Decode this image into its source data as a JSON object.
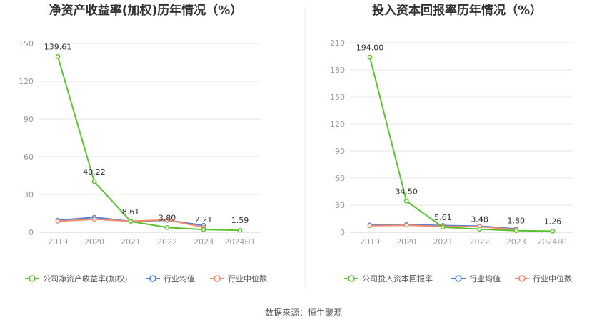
{
  "source_text": "数据来源：恒生聚源",
  "chart_data": [
    {
      "type": "line",
      "title": "净资产收益率(加权)历年情况（%）",
      "categories": [
        "2019",
        "2020",
        "2021",
        "2022",
        "2023",
        "2024H1"
      ],
      "ylim": [
        0,
        150
      ],
      "yticks": [
        0,
        30,
        60,
        90,
        120,
        150
      ],
      "grid": true,
      "legend_position": "bottom",
      "series": [
        {
          "name": "公司净资产收益率(加权)",
          "color": "#5cc22f",
          "values": [
            139.61,
            40.22,
            8.61,
            3.8,
            2.21,
            1.59
          ],
          "labels": [
            "139.61",
            "40.22",
            "8.61",
            "3.80",
            "2.21",
            "1.59"
          ]
        },
        {
          "name": "行业均值",
          "color": "#4f7fd7",
          "values": [
            9.5,
            11.8,
            8.7,
            9.5,
            5.5,
            null
          ]
        },
        {
          "name": "行业中位数",
          "color": "#f08a6c",
          "values": [
            8.8,
            10.3,
            8.8,
            9.8,
            4.0,
            null
          ]
        }
      ]
    },
    {
      "type": "line",
      "title": "投入资本回报率历年情况（%）",
      "categories": [
        "2019",
        "2020",
        "2021",
        "2022",
        "2023",
        "2024H1"
      ],
      "ylim": [
        0,
        210
      ],
      "yticks": [
        0,
        30,
        60,
        90,
        120,
        150,
        180,
        210
      ],
      "grid": true,
      "legend_position": "bottom",
      "series": [
        {
          "name": "公司投入资本回报率",
          "color": "#5cc22f",
          "values": [
            194.0,
            34.5,
            5.61,
            3.48,
            1.8,
            1.26
          ],
          "labels": [
            "194.00",
            "34.50",
            "5.61",
            "3.48",
            "1.80",
            "1.26"
          ]
        },
        {
          "name": "行业均值",
          "color": "#4f7fd7",
          "values": [
            8.0,
            8.5,
            7.5,
            6.8,
            3.8,
            null
          ]
        },
        {
          "name": "行业中位数",
          "color": "#f08a6c",
          "values": [
            7.2,
            7.8,
            6.5,
            6.2,
            3.0,
            null
          ]
        }
      ]
    }
  ]
}
